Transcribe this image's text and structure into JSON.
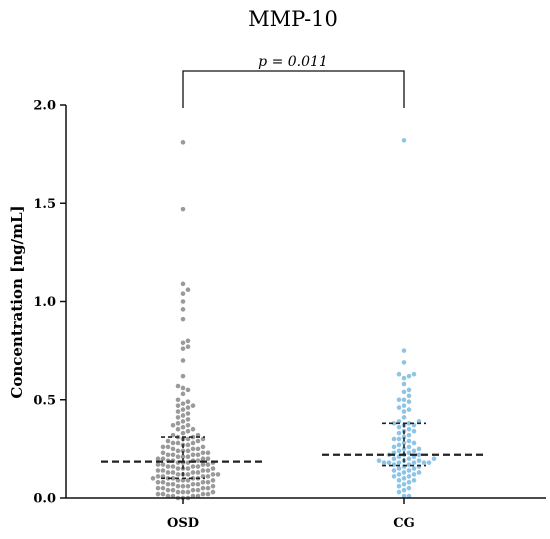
{
  "chart_data": {
    "type": "scatter",
    "subtype": "dot-plot (beeswarm) with median and interquartile range",
    "title": "MMP-10",
    "ylabel": "Concentration [ng/mL]",
    "xlabel": "",
    "ylim": [
      0,
      2.0
    ],
    "yticks": [
      "0.0",
      "0.5",
      "1.0",
      "1.5",
      "2.0"
    ],
    "categories": [
      "OSD",
      "CG"
    ],
    "annotation": "p = 0.011",
    "grid": false,
    "legend": "none",
    "colors": {
      "OSD": "#9a9a9a",
      "CG": "#8ec4e6",
      "lines": "#222222"
    },
    "series": [
      {
        "category": "OSD",
        "median": 0.185,
        "q1": 0.1,
        "q3": 0.31,
        "values": [
          1.81,
          1.47,
          1.09,
          1.06,
          1.04,
          1.0,
          0.96,
          0.91,
          0.8,
          0.79,
          0.77,
          0.76,
          0.7,
          0.62,
          0.57,
          0.56,
          0.55,
          0.53,
          0.5,
          0.49,
          0.48,
          0.47,
          0.47,
          0.46,
          0.45,
          0.44,
          0.43,
          0.42,
          0.41,
          0.4,
          0.39,
          0.38,
          0.37,
          0.37,
          0.36,
          0.35,
          0.35,
          0.34,
          0.33,
          0.32,
          0.32,
          0.31,
          0.31,
          0.3,
          0.3,
          0.3,
          0.29,
          0.29,
          0.28,
          0.28,
          0.28,
          0.27,
          0.27,
          0.26,
          0.26,
          0.26,
          0.25,
          0.25,
          0.25,
          0.24,
          0.24,
          0.24,
          0.23,
          0.23,
          0.23,
          0.22,
          0.22,
          0.22,
          0.22,
          0.21,
          0.21,
          0.21,
          0.2,
          0.2,
          0.2,
          0.2,
          0.19,
          0.19,
          0.19,
          0.19,
          0.18,
          0.18,
          0.18,
          0.18,
          0.17,
          0.17,
          0.17,
          0.17,
          0.16,
          0.16,
          0.16,
          0.16,
          0.15,
          0.15,
          0.15,
          0.15,
          0.14,
          0.14,
          0.14,
          0.14,
          0.13,
          0.13,
          0.13,
          0.13,
          0.12,
          0.12,
          0.12,
          0.12,
          0.12,
          0.11,
          0.11,
          0.11,
          0.11,
          0.1,
          0.1,
          0.1,
          0.1,
          0.1,
          0.09,
          0.09,
          0.09,
          0.09,
          0.08,
          0.08,
          0.08,
          0.08,
          0.07,
          0.07,
          0.07,
          0.07,
          0.06,
          0.06,
          0.06,
          0.06,
          0.05,
          0.05,
          0.05,
          0.05,
          0.04,
          0.04,
          0.04,
          0.04,
          0.03,
          0.03,
          0.03,
          0.03,
          0.02,
          0.02,
          0.02,
          0.02,
          0.01,
          0.01,
          0.01,
          0.01,
          0.0,
          0.0,
          0.0
        ]
      },
      {
        "category": "CG",
        "median": 0.22,
        "q1": 0.165,
        "q3": 0.38,
        "values": [
          1.82,
          0.75,
          0.69,
          0.63,
          0.63,
          0.62,
          0.61,
          0.58,
          0.55,
          0.54,
          0.52,
          0.5,
          0.5,
          0.49,
          0.47,
          0.46,
          0.45,
          0.44,
          0.41,
          0.39,
          0.39,
          0.38,
          0.38,
          0.37,
          0.37,
          0.36,
          0.35,
          0.34,
          0.34,
          0.33,
          0.32,
          0.31,
          0.3,
          0.3,
          0.29,
          0.28,
          0.28,
          0.27,
          0.26,
          0.26,
          0.25,
          0.25,
          0.24,
          0.24,
          0.23,
          0.23,
          0.22,
          0.22,
          0.22,
          0.21,
          0.21,
          0.2,
          0.2,
          0.2,
          0.19,
          0.19,
          0.19,
          0.18,
          0.18,
          0.18,
          0.18,
          0.18,
          0.18,
          0.17,
          0.17,
          0.16,
          0.16,
          0.15,
          0.15,
          0.14,
          0.14,
          0.13,
          0.13,
          0.12,
          0.12,
          0.11,
          0.11,
          0.1,
          0.09,
          0.09,
          0.08,
          0.07,
          0.06,
          0.05,
          0.04,
          0.03,
          0.01,
          0.01
        ]
      }
    ]
  }
}
